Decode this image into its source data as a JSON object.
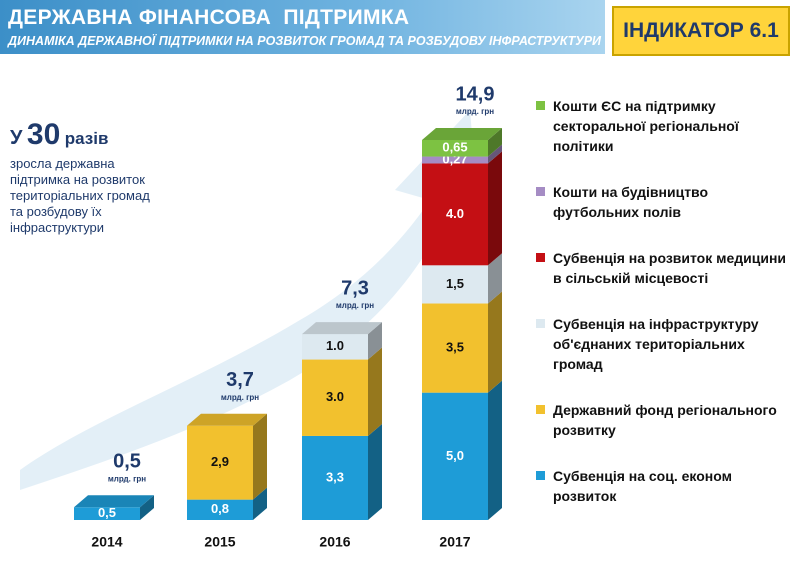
{
  "header": {
    "title": "ДЕРЖАВНА ФІНАНСОВА  ПІДТРИМКА",
    "subtitle": "ДИНАМІКА ДЕРЖАВНОЇ ПІДТРИМКИ НА РОЗВИТОК ГРОМАД ТА РОЗБУДОВУ ІНФРАСТРУКТУРИ",
    "indicator": "ІНДИКАТОР 6.1"
  },
  "highlight": {
    "prefix": "У",
    "number": 30,
    "suffix": "разів",
    "text": "зросла державна підтримка на розвиток територіальних громад та розбудову їх інфраструктури"
  },
  "chart_data": {
    "type": "bar",
    "stacked": true,
    "categories": [
      "2014",
      "2015",
      "2016",
      "2017"
    ],
    "totals": [
      0.5,
      3.7,
      7.3,
      14.9
    ],
    "total_labels": [
      "0,5",
      "3,7",
      "7,3",
      "14,9"
    ],
    "unit": "млрд. грн",
    "series": [
      {
        "name": "Субвенція на соц. економ розвиток",
        "color": "#1e9cd7",
        "values": [
          0.5,
          0.8,
          3.3,
          5.0
        ],
        "value_labels": [
          "0,5",
          "0,8",
          "3,3",
          "5,0"
        ]
      },
      {
        "name": "Державний фонд регіонального розвитку",
        "color": "#f2c12e",
        "values": [
          null,
          2.9,
          3.0,
          3.5
        ],
        "value_labels": [
          null,
          "2,9",
          "3.0",
          "3,5"
        ]
      },
      {
        "name": "Субвенція на інфраструктуру об'єднаних територіальних громад",
        "color": "#dde9f0",
        "values": [
          null,
          null,
          1.0,
          1.5
        ],
        "value_labels": [
          null,
          null,
          "1.0",
          "1,5"
        ]
      },
      {
        "name": "Субвенція на розвиток медицини в сільській місцевості",
        "color": "#c40f14",
        "values": [
          null,
          null,
          null,
          4.0
        ],
        "value_labels": [
          null,
          null,
          null,
          "4.0"
        ]
      },
      {
        "name": "Кошти на будівництво футбольних полів",
        "color": "#a58cc4",
        "values": [
          null,
          null,
          null,
          0.27
        ],
        "value_labels": [
          null,
          null,
          null,
          "0,27"
        ]
      },
      {
        "name": "Кошти ЄС на підтримку секторальної регіональної політики",
        "color": "#7dc242",
        "values": [
          null,
          null,
          null,
          0.65
        ],
        "value_labels": [
          null,
          null,
          null,
          "0,65"
        ]
      }
    ]
  }
}
